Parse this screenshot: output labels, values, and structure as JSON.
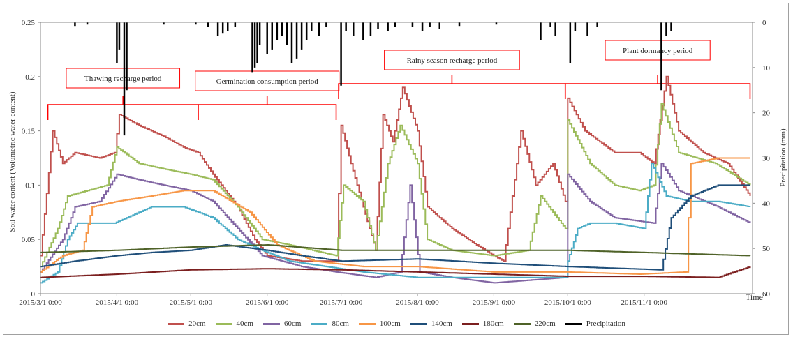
{
  "chart_data": {
    "type": "line",
    "ylabel": "Soil water content (Volumetric water content)",
    "y2label": "Precipitation (mm)",
    "xlabel": "Time",
    "ylim": [
      0,
      0.25
    ],
    "y2lim": [
      0,
      60
    ],
    "y2_inverted": true,
    "yticks": [
      "0",
      "0.05",
      "0.1",
      "0.15",
      "0.2",
      "0.25"
    ],
    "y2ticks": [
      "0",
      "10",
      "20",
      "30",
      "40",
      "50",
      "60"
    ],
    "xlim": [
      "2015-03-01",
      "2015-12-15"
    ],
    "xticks": [
      {
        "date": "2015-03-01",
        "label": "2015/3/1 0:00"
      },
      {
        "date": "2015-04-01",
        "label": "2015/4/1 0:00"
      },
      {
        "date": "2015-05-01",
        "label": "2015/5/1 0:00"
      },
      {
        "date": "2015-06-01",
        "label": "2015/6/1 0:00"
      },
      {
        "date": "2015-07-01",
        "label": "2015/7/1 0:00"
      },
      {
        "date": "2015-08-01",
        "label": "2015/8/1 0:00"
      },
      {
        "date": "2015-09-01",
        "label": "2015/9/1 0:00"
      },
      {
        "date": "2015-10-01",
        "label": "2015/10/1 0:00"
      },
      {
        "date": "2015-11-01",
        "label": "2015/11/1 0:00"
      }
    ],
    "periods": [
      {
        "label": "Thawing recharge period",
        "start": "2015-03-04",
        "end": "2015-05-04"
      },
      {
        "label": "Germination consumption period",
        "start": "2015-05-04",
        "end": "2015-06-29"
      },
      {
        "label": "Rainy season recharge period",
        "start": "2015-06-30",
        "end": "2015-09-30"
      },
      {
        "label": "Plant dormancy period",
        "start": "2015-09-30",
        "end": "2015-12-14"
      }
    ],
    "series": [
      {
        "name": "20cm",
        "color": "#c0504d",
        "points": [
          [
            "2015-03-01",
            0.035
          ],
          [
            "2015-03-06",
            0.15
          ],
          [
            "2015-03-10",
            0.12
          ],
          [
            "2015-03-15",
            0.13
          ],
          [
            "2015-03-25",
            0.125
          ],
          [
            "2015-03-31",
            0.13
          ],
          [
            "2015-04-02",
            0.165
          ],
          [
            "2015-04-10",
            0.155
          ],
          [
            "2015-04-20",
            0.145
          ],
          [
            "2015-04-28",
            0.135
          ],
          [
            "2015-05-04",
            0.13
          ],
          [
            "2015-05-10",
            0.11
          ],
          [
            "2015-05-20",
            0.08
          ],
          [
            "2015-05-27",
            0.05
          ],
          [
            "2015-06-01",
            0.035
          ],
          [
            "2015-06-15",
            0.03
          ],
          [
            "2015-06-29",
            0.03
          ],
          [
            "2015-07-01",
            0.155
          ],
          [
            "2015-07-05",
            0.12
          ],
          [
            "2015-07-10",
            0.08
          ],
          [
            "2015-07-15",
            0.04
          ],
          [
            "2015-07-18",
            0.165
          ],
          [
            "2015-07-22",
            0.14
          ],
          [
            "2015-07-26",
            0.19
          ],
          [
            "2015-08-01",
            0.15
          ],
          [
            "2015-08-05",
            0.08
          ],
          [
            "2015-08-15",
            0.06
          ],
          [
            "2015-08-25",
            0.045
          ],
          [
            "2015-09-01",
            0.035
          ],
          [
            "2015-09-05",
            0.03
          ],
          [
            "2015-09-12",
            0.15
          ],
          [
            "2015-09-18",
            0.1
          ],
          [
            "2015-09-25",
            0.12
          ],
          [
            "2015-09-30",
            0.085
          ],
          [
            "2015-10-01",
            0.18
          ],
          [
            "2015-10-08",
            0.15
          ],
          [
            "2015-10-20",
            0.13
          ],
          [
            "2015-10-30",
            0.13
          ],
          [
            "2015-11-05",
            0.12
          ],
          [
            "2015-11-10",
            0.2
          ],
          [
            "2015-11-15",
            0.15
          ],
          [
            "2015-11-25",
            0.13
          ],
          [
            "2015-12-05",
            0.12
          ],
          [
            "2015-12-14",
            0.09
          ]
        ]
      },
      {
        "name": "40cm",
        "color": "#9bbb59",
        "points": [
          [
            "2015-03-01",
            0.025
          ],
          [
            "2015-03-08",
            0.06
          ],
          [
            "2015-03-12",
            0.09
          ],
          [
            "2015-03-20",
            0.095
          ],
          [
            "2015-03-28",
            0.1
          ],
          [
            "2015-04-01",
            0.135
          ],
          [
            "2015-04-10",
            0.12
          ],
          [
            "2015-04-20",
            0.115
          ],
          [
            "2015-05-01",
            0.11
          ],
          [
            "2015-05-10",
            0.105
          ],
          [
            "2015-05-20",
            0.08
          ],
          [
            "2015-05-30",
            0.05
          ],
          [
            "2015-06-10",
            0.045
          ],
          [
            "2015-06-29",
            0.035
          ],
          [
            "2015-07-02",
            0.1
          ],
          [
            "2015-07-10",
            0.085
          ],
          [
            "2015-07-15",
            0.04
          ],
          [
            "2015-07-20",
            0.12
          ],
          [
            "2015-07-25",
            0.155
          ],
          [
            "2015-08-01",
            0.12
          ],
          [
            "2015-08-05",
            0.05
          ],
          [
            "2015-08-15",
            0.04
          ],
          [
            "2015-09-01",
            0.035
          ],
          [
            "2015-09-15",
            0.04
          ],
          [
            "2015-09-20",
            0.09
          ],
          [
            "2015-09-30",
            0.06
          ],
          [
            "2015-10-01",
            0.16
          ],
          [
            "2015-10-10",
            0.12
          ],
          [
            "2015-10-20",
            0.1
          ],
          [
            "2015-10-30",
            0.095
          ],
          [
            "2015-11-05",
            0.1
          ],
          [
            "2015-11-08",
            0.175
          ],
          [
            "2015-11-15",
            0.13
          ],
          [
            "2015-11-30",
            0.12
          ],
          [
            "2015-12-14",
            0.1
          ]
        ]
      },
      {
        "name": "60cm",
        "color": "#8064a2",
        "points": [
          [
            "2015-03-01",
            0.02
          ],
          [
            "2015-03-10",
            0.05
          ],
          [
            "2015-03-15",
            0.08
          ],
          [
            "2015-03-25",
            0.085
          ],
          [
            "2015-04-01",
            0.11
          ],
          [
            "2015-04-10",
            0.105
          ],
          [
            "2015-04-20",
            0.1
          ],
          [
            "2015-05-01",
            0.095
          ],
          [
            "2015-05-10",
            0.085
          ],
          [
            "2015-05-20",
            0.06
          ],
          [
            "2015-05-30",
            0.035
          ],
          [
            "2015-06-15",
            0.025
          ],
          [
            "2015-06-29",
            0.02
          ],
          [
            "2015-07-15",
            0.015
          ],
          [
            "2015-07-25",
            0.02
          ],
          [
            "2015-07-29",
            0.1
          ],
          [
            "2015-08-02",
            0.02
          ],
          [
            "2015-08-15",
            0.015
          ],
          [
            "2015-09-01",
            0.01
          ],
          [
            "2015-09-30",
            0.015
          ],
          [
            "2015-10-01",
            0.11
          ],
          [
            "2015-10-10",
            0.085
          ],
          [
            "2015-10-20",
            0.07
          ],
          [
            "2015-11-05",
            0.065
          ],
          [
            "2015-11-08",
            0.12
          ],
          [
            "2015-11-15",
            0.095
          ],
          [
            "2015-12-01",
            0.08
          ],
          [
            "2015-12-14",
            0.065
          ]
        ]
      },
      {
        "name": "80cm",
        "color": "#4bacc6",
        "points": [
          [
            "2015-03-01",
            0.01
          ],
          [
            "2015-03-08",
            0.02
          ],
          [
            "2015-03-12",
            0.05
          ],
          [
            "2015-03-16",
            0.065
          ],
          [
            "2015-03-31",
            0.065
          ],
          [
            "2015-04-05",
            0.07
          ],
          [
            "2015-04-15",
            0.08
          ],
          [
            "2015-04-28",
            0.08
          ],
          [
            "2015-05-10",
            0.07
          ],
          [
            "2015-05-20",
            0.05
          ],
          [
            "2015-05-30",
            0.04
          ],
          [
            "2015-06-10",
            0.03
          ],
          [
            "2015-06-25",
            0.025
          ],
          [
            "2015-07-10",
            0.02
          ],
          [
            "2015-08-01",
            0.015
          ],
          [
            "2015-08-20",
            0.015
          ],
          [
            "2015-09-30",
            0.015
          ],
          [
            "2015-10-01",
            0.03
          ],
          [
            "2015-10-05",
            0.06
          ],
          [
            "2015-10-10",
            0.065
          ],
          [
            "2015-10-20",
            0.065
          ],
          [
            "2015-11-01",
            0.06
          ],
          [
            "2015-11-04",
            0.12
          ],
          [
            "2015-11-10",
            0.09
          ],
          [
            "2015-11-20",
            0.085
          ],
          [
            "2015-12-01",
            0.085
          ],
          [
            "2015-12-14",
            0.08
          ]
        ]
      },
      {
        "name": "100cm",
        "color": "#f79646",
        "points": [
          [
            "2015-03-01",
            0.02
          ],
          [
            "2015-03-10",
            0.035
          ],
          [
            "2015-03-18",
            0.04
          ],
          [
            "2015-03-22",
            0.08
          ],
          [
            "2015-04-01",
            0.085
          ],
          [
            "2015-04-15",
            0.09
          ],
          [
            "2015-04-28",
            0.095
          ],
          [
            "2015-05-10",
            0.095
          ],
          [
            "2015-05-25",
            0.075
          ],
          [
            "2015-06-05",
            0.045
          ],
          [
            "2015-06-20",
            0.03
          ],
          [
            "2015-07-10",
            0.025
          ],
          [
            "2015-08-01",
            0.025
          ],
          [
            "2015-09-01",
            0.02
          ],
          [
            "2015-10-01",
            0.02
          ],
          [
            "2015-10-30",
            0.018
          ],
          [
            "2015-11-18",
            0.02
          ],
          [
            "2015-11-20",
            0.12
          ],
          [
            "2015-12-01",
            0.125
          ],
          [
            "2015-12-14",
            0.125
          ]
        ]
      },
      {
        "name": "140cm",
        "color": "#1f4e79",
        "points": [
          [
            "2015-03-01",
            0.025
          ],
          [
            "2015-03-15",
            0.03
          ],
          [
            "2015-04-01",
            0.035
          ],
          [
            "2015-04-15",
            0.038
          ],
          [
            "2015-05-01",
            0.04
          ],
          [
            "2015-05-15",
            0.045
          ],
          [
            "2015-06-01",
            0.04
          ],
          [
            "2015-06-15",
            0.035
          ],
          [
            "2015-07-01",
            0.03
          ],
          [
            "2015-08-01",
            0.032
          ],
          [
            "2015-09-01",
            0.028
          ],
          [
            "2015-10-01",
            0.025
          ],
          [
            "2015-11-08",
            0.022
          ],
          [
            "2015-11-12",
            0.07
          ],
          [
            "2015-11-20",
            0.09
          ],
          [
            "2015-12-01",
            0.1
          ],
          [
            "2015-12-14",
            0.1
          ]
        ]
      },
      {
        "name": "180cm",
        "color": "#7b1f1f",
        "points": [
          [
            "2015-03-01",
            0.015
          ],
          [
            "2015-04-01",
            0.018
          ],
          [
            "2015-05-01",
            0.022
          ],
          [
            "2015-06-01",
            0.023
          ],
          [
            "2015-07-01",
            0.022
          ],
          [
            "2015-08-01",
            0.02
          ],
          [
            "2015-09-01",
            0.018
          ],
          [
            "2015-10-01",
            0.016
          ],
          [
            "2015-11-01",
            0.016
          ],
          [
            "2015-12-01",
            0.015
          ],
          [
            "2015-12-14",
            0.025
          ]
        ]
      },
      {
        "name": "220cm",
        "color": "#4f6228",
        "points": [
          [
            "2015-03-01",
            0.038
          ],
          [
            "2015-04-01",
            0.04
          ],
          [
            "2015-05-01",
            0.043
          ],
          [
            "2015-06-01",
            0.045
          ],
          [
            "2015-07-01",
            0.04
          ],
          [
            "2015-08-01",
            0.04
          ],
          [
            "2015-09-01",
            0.04
          ],
          [
            "2015-10-01",
            0.04
          ],
          [
            "2015-11-01",
            0.038
          ],
          [
            "2015-12-14",
            0.035
          ]
        ]
      }
    ],
    "precipitation": {
      "name": "Precipitation",
      "color": "#000000",
      "points": [
        [
          "2015-03-15",
          0.8
        ],
        [
          "2015-03-20",
          0.5
        ],
        [
          "2015-04-01",
          9
        ],
        [
          "2015-04-02",
          6
        ],
        [
          "2015-04-04",
          25
        ],
        [
          "2015-04-05",
          15
        ],
        [
          "2015-04-20",
          0.5
        ],
        [
          "2015-05-03",
          0.5
        ],
        [
          "2015-05-08",
          1
        ],
        [
          "2015-05-12",
          3
        ],
        [
          "2015-05-14",
          2.5
        ],
        [
          "2015-05-16",
          2
        ],
        [
          "2015-05-19",
          1
        ],
        [
          "2015-05-26",
          11
        ],
        [
          "2015-05-27",
          10
        ],
        [
          "2015-05-28",
          9
        ],
        [
          "2015-05-29",
          5
        ],
        [
          "2015-06-01",
          7
        ],
        [
          "2015-06-03",
          6
        ],
        [
          "2015-06-05",
          4
        ],
        [
          "2015-06-07",
          3
        ],
        [
          "2015-06-09",
          5
        ],
        [
          "2015-06-11",
          9
        ],
        [
          "2015-06-13",
          8
        ],
        [
          "2015-06-15",
          6
        ],
        [
          "2015-06-17",
          4
        ],
        [
          "2015-06-19",
          2
        ],
        [
          "2015-06-22",
          3
        ],
        [
          "2015-06-25",
          1
        ],
        [
          "2015-07-01",
          14
        ],
        [
          "2015-07-03",
          2
        ],
        [
          "2015-07-06",
          3
        ],
        [
          "2015-07-10",
          4
        ],
        [
          "2015-07-13",
          3
        ],
        [
          "2015-07-16",
          1.5
        ],
        [
          "2015-07-20",
          2
        ],
        [
          "2015-07-23",
          1
        ],
        [
          "2015-07-30",
          1
        ],
        [
          "2015-08-03",
          2
        ],
        [
          "2015-08-06",
          1
        ],
        [
          "2015-08-10",
          1.5
        ],
        [
          "2015-08-18",
          0.8
        ],
        [
          "2015-09-02",
          0.5
        ],
        [
          "2015-09-20",
          4
        ],
        [
          "2015-09-24",
          1
        ],
        [
          "2015-09-26",
          3
        ],
        [
          "2015-10-02",
          9
        ],
        [
          "2015-10-04",
          2
        ],
        [
          "2015-10-09",
          3
        ],
        [
          "2015-10-13",
          1
        ],
        [
          "2015-11-08",
          15
        ],
        [
          "2015-11-10",
          3
        ],
        [
          "2015-11-12",
          2
        ]
      ]
    }
  },
  "legend": [
    {
      "label": "20cm",
      "color": "#c0504d"
    },
    {
      "label": "40cm",
      "color": "#9bbb59"
    },
    {
      "label": "60cm",
      "color": "#8064a2"
    },
    {
      "label": "80cm",
      "color": "#4bacc6"
    },
    {
      "label": "100cm",
      "color": "#f79646"
    },
    {
      "label": "140cm",
      "color": "#1f4e79"
    },
    {
      "label": "180cm",
      "color": "#7b1f1f"
    },
    {
      "label": "220cm",
      "color": "#4f6228"
    },
    {
      "label": "Precipitation",
      "color": "#000000"
    }
  ]
}
